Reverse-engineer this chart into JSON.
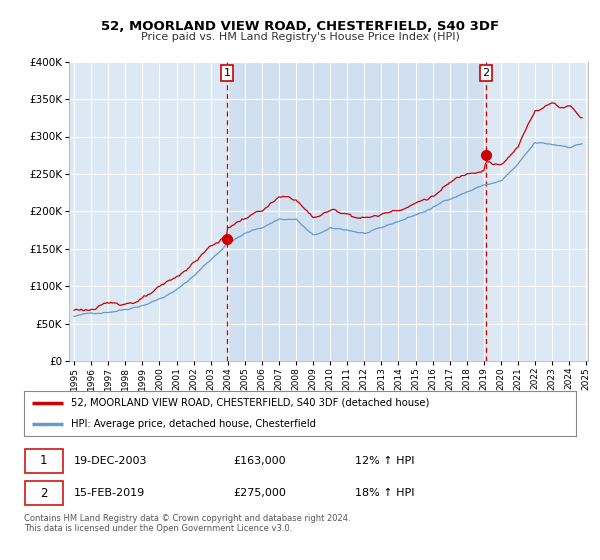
{
  "title": "52, MOORLAND VIEW ROAD, CHESTERFIELD, S40 3DF",
  "subtitle": "Price paid vs. HM Land Registry's House Price Index (HPI)",
  "plot_bg_color": "#dce9f5",
  "grid_color": "#ffffff",
  "ylim": [
    0,
    400000
  ],
  "yticks": [
    0,
    50000,
    100000,
    150000,
    200000,
    250000,
    300000,
    350000,
    400000
  ],
  "ytick_labels": [
    "£0",
    "£50K",
    "£100K",
    "£150K",
    "£200K",
    "£250K",
    "£300K",
    "£350K",
    "£400K"
  ],
  "xstart_year": 1995,
  "xend_year": 2025,
  "sale1_year": 2003.958,
  "sale1_price": 163000,
  "sale1_label": "1",
  "sale1_date": "19-DEC-2003",
  "sale1_hpi": "12% ↑ HPI",
  "sale2_year": 2019.12,
  "sale2_price": 275000,
  "sale2_label": "2",
  "sale2_date": "15-FEB-2019",
  "sale2_hpi": "18% ↑ HPI",
  "line_color_red": "#cc0000",
  "line_color_blue": "#6699cc",
  "vline_color": "#cc0000",
  "shade_color": "#c5d9ee",
  "legend_label_red": "52, MOORLAND VIEW ROAD, CHESTERFIELD, S40 3DF (detached house)",
  "legend_label_blue": "HPI: Average price, detached house, Chesterfield",
  "footnote": "Contains HM Land Registry data © Crown copyright and database right 2024.\nThis data is licensed under the Open Government Licence v3.0."
}
